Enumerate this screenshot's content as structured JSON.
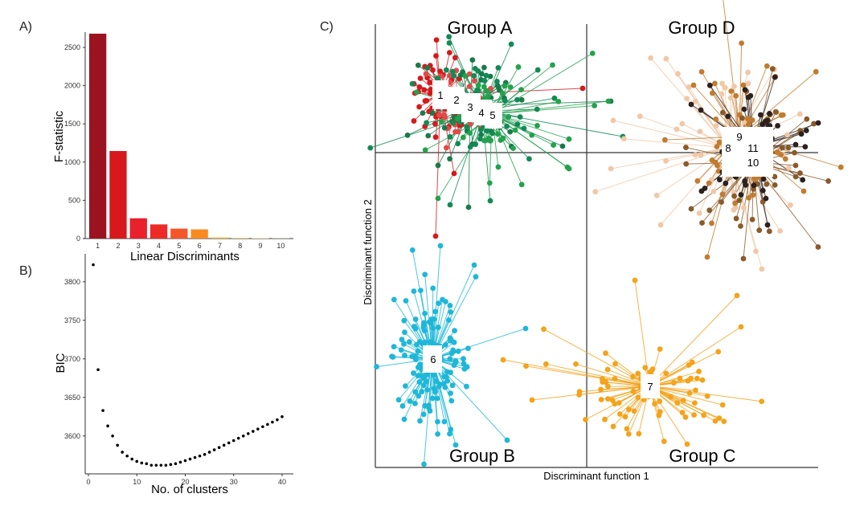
{
  "panels": {
    "a_label": "A)",
    "b_label": "B)",
    "c_label": "C)"
  },
  "chart_data": [
    {
      "type": "bar",
      "panel": "A",
      "xlabel": "Linear Discriminants",
      "ylabel": "F-statistic",
      "categories": [
        "1",
        "2",
        "3",
        "4",
        "5",
        "6",
        "7",
        "8",
        "9",
        "10"
      ],
      "values": [
        2680,
        1145,
        265,
        185,
        130,
        120,
        15,
        10,
        8,
        3
      ],
      "ylim": [
        0,
        2700
      ],
      "yticks": [
        0,
        500,
        1000,
        1500,
        2000,
        2500
      ],
      "colors": [
        "#9b1320",
        "#d7191c",
        "#e8212b",
        "#ee2a26",
        "#f4562a",
        "#f98a20",
        "#fbbd4a",
        "#fdd47a",
        "#fde3a2",
        "#fef3d4"
      ],
      "grid": false
    },
    {
      "type": "scatter",
      "panel": "B",
      "xlabel": "No. of clusters",
      "ylabel": "BIC",
      "xlim": [
        0,
        41
      ],
      "ylim": [
        3555,
        3830
      ],
      "xticks": [
        0,
        10,
        20,
        30,
        40
      ],
      "yticks": [
        3600,
        3650,
        3700,
        3750,
        3800
      ],
      "x": [
        1,
        2,
        3,
        4,
        5,
        6,
        7,
        8,
        9,
        10,
        11,
        12,
        13,
        14,
        15,
        16,
        17,
        18,
        19,
        20,
        21,
        22,
        23,
        24,
        25,
        26,
        27,
        28,
        29,
        30,
        31,
        32,
        33,
        34,
        35,
        36,
        37,
        38,
        39,
        40
      ],
      "y": [
        3822,
        3686,
        3633,
        3613,
        3600,
        3588,
        3579,
        3574,
        3570,
        3567,
        3565,
        3564,
        3562,
        3562,
        3562,
        3562,
        3563,
        3564,
        3566,
        3568,
        3570,
        3572,
        3574,
        3576,
        3579,
        3582,
        3585,
        3588,
        3591,
        3594,
        3597,
        3600,
        3603,
        3606,
        3609,
        3612,
        3615,
        3618,
        3621,
        3625
      ],
      "color": "#000000",
      "grid": false
    },
    {
      "type": "scatter",
      "panel": "C",
      "xlabel": "Discriminant function 1",
      "ylabel": "Discriminant function 2",
      "quadrant_labels": [
        "Group A",
        "Group D",
        "Group B",
        "Group C"
      ],
      "series": [
        {
          "id": "1",
          "color": "#d7191c"
        },
        {
          "id": "2",
          "color": "#e34a4a"
        },
        {
          "id": "3",
          "color": "#1a7a4a"
        },
        {
          "id": "4",
          "color": "#128a55"
        },
        {
          "id": "5",
          "color": "#22a24c"
        },
        {
          "id": "6",
          "color": "#1fb7d8"
        },
        {
          "id": "7",
          "color": "#f3a31c"
        },
        {
          "id": "8",
          "color": "#f0c8a8"
        },
        {
          "id": "9",
          "color": "#c07c30"
        },
        {
          "id": "10",
          "color": "#8a5a2a"
        },
        {
          "id": "11",
          "color": "#2b211e"
        }
      ]
    }
  ]
}
